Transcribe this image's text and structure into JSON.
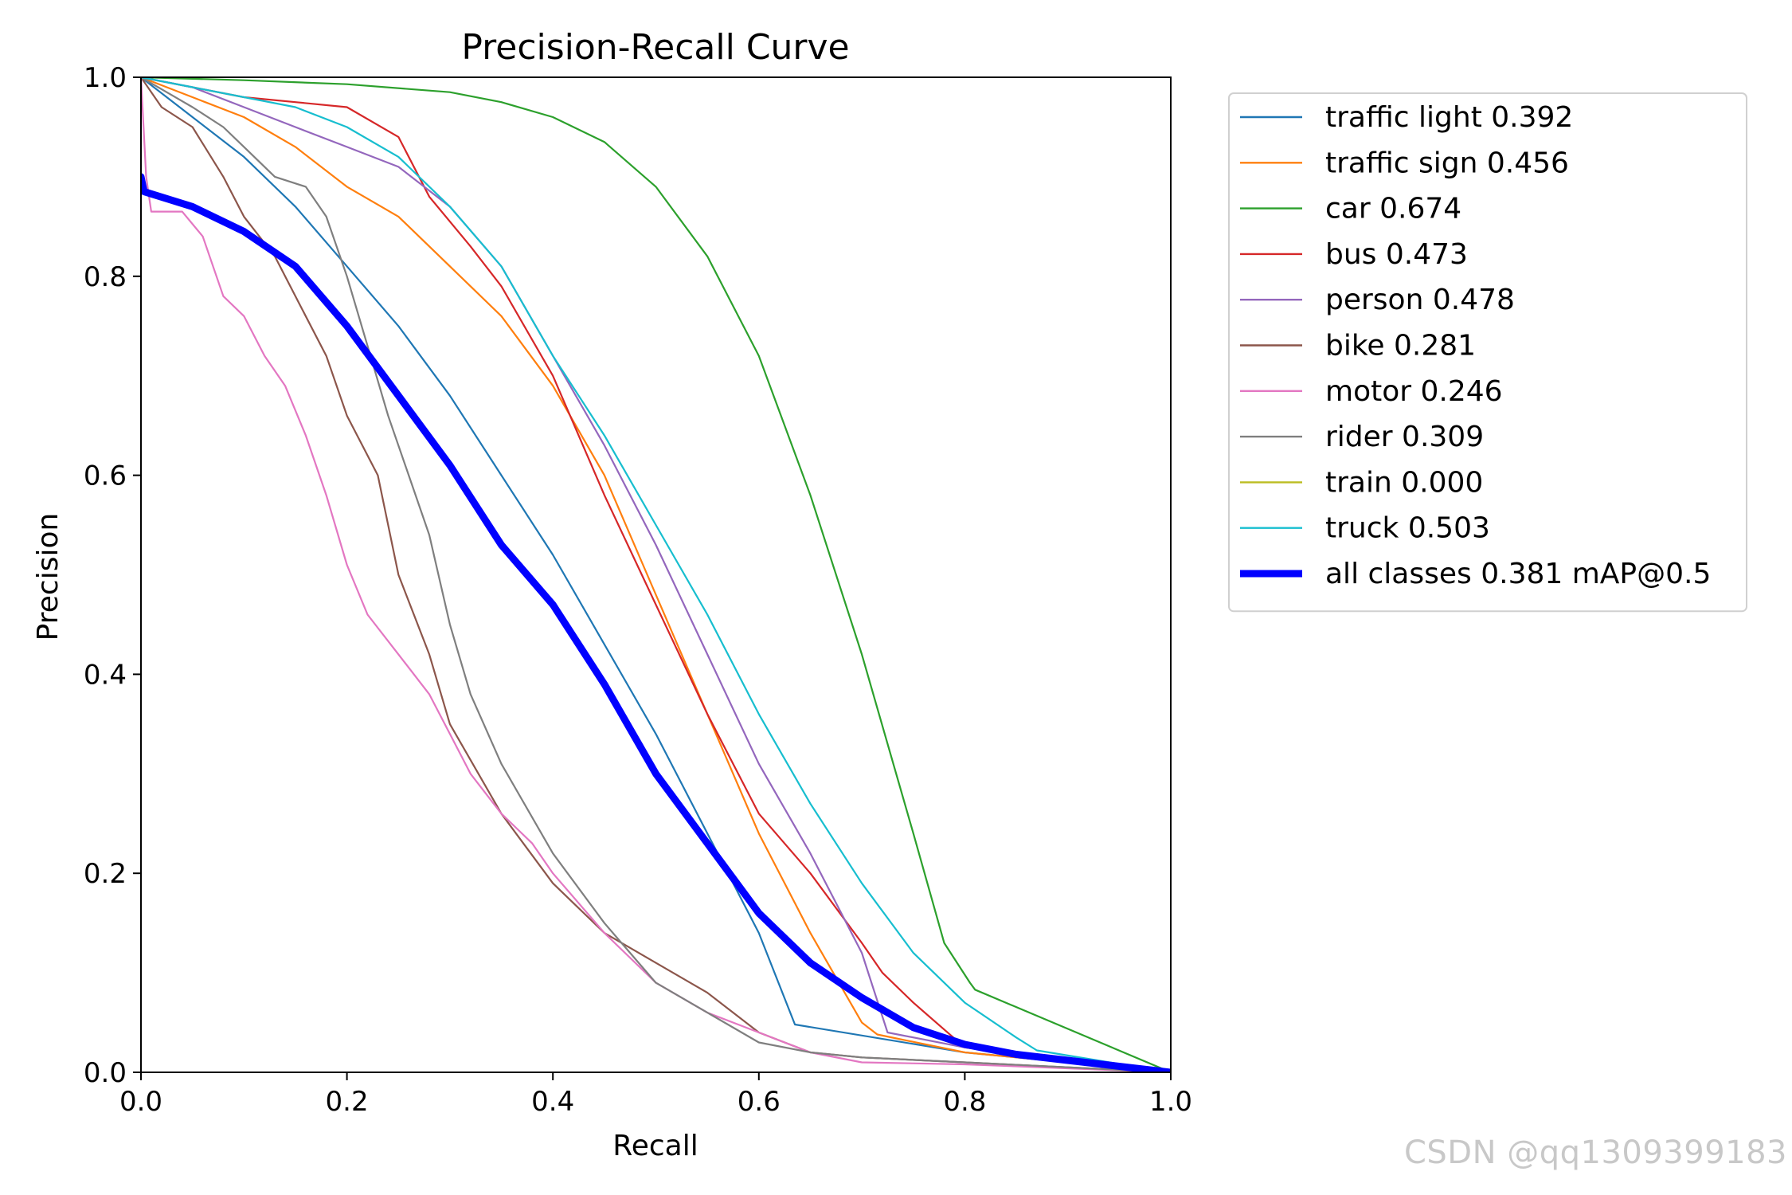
{
  "chart_data": {
    "type": "line",
    "title": "Precision-Recall Curve",
    "xlabel": "Recall",
    "ylabel": "Precision",
    "xlim": [
      0,
      1
    ],
    "ylim": [
      0,
      1
    ],
    "xticks": [
      "0.0",
      "0.2",
      "0.4",
      "0.6",
      "0.8",
      "1.0"
    ],
    "yticks": [
      "0.0",
      "0.2",
      "0.4",
      "0.6",
      "0.8",
      "1.0"
    ],
    "legend_position": "outside-top-right",
    "series": [
      {
        "name": "traffic light 0.392",
        "color": "#1f77b4",
        "x": [
          0,
          0.05,
          0.1,
          0.15,
          0.2,
          0.25,
          0.3,
          0.35,
          0.4,
          0.45,
          0.5,
          0.55,
          0.6,
          0.635,
          0.8,
          1.0
        ],
        "y": [
          1.0,
          0.96,
          0.92,
          0.87,
          0.81,
          0.75,
          0.68,
          0.6,
          0.52,
          0.43,
          0.34,
          0.24,
          0.14,
          0.048,
          0.02,
          0.0
        ]
      },
      {
        "name": "traffic sign 0.456",
        "color": "#ff7f0e",
        "x": [
          0,
          0.05,
          0.1,
          0.15,
          0.2,
          0.25,
          0.3,
          0.35,
          0.4,
          0.45,
          0.5,
          0.55,
          0.6,
          0.65,
          0.7,
          0.715,
          0.8,
          1.0
        ],
        "y": [
          1.0,
          0.98,
          0.96,
          0.93,
          0.89,
          0.86,
          0.81,
          0.76,
          0.69,
          0.6,
          0.48,
          0.36,
          0.24,
          0.14,
          0.05,
          0.038,
          0.02,
          0.0
        ]
      },
      {
        "name": "car 0.674",
        "color": "#2ca02c",
        "x": [
          0,
          0.1,
          0.2,
          0.3,
          0.35,
          0.4,
          0.45,
          0.5,
          0.55,
          0.6,
          0.65,
          0.7,
          0.75,
          0.78,
          0.805,
          0.81,
          1.0
        ],
        "y": [
          1.0,
          0.997,
          0.993,
          0.985,
          0.975,
          0.96,
          0.935,
          0.89,
          0.82,
          0.72,
          0.58,
          0.42,
          0.24,
          0.13,
          0.09,
          0.083,
          0.0
        ]
      },
      {
        "name": "bus 0.473",
        "color": "#d62728",
        "x": [
          0,
          0.05,
          0.1,
          0.15,
          0.2,
          0.25,
          0.28,
          0.32,
          0.35,
          0.4,
          0.45,
          0.5,
          0.55,
          0.6,
          0.65,
          0.7,
          0.72,
          0.75,
          0.8,
          1.0
        ],
        "y": [
          1.0,
          0.99,
          0.98,
          0.975,
          0.97,
          0.94,
          0.88,
          0.83,
          0.79,
          0.7,
          0.58,
          0.47,
          0.36,
          0.26,
          0.2,
          0.13,
          0.1,
          0.07,
          0.025,
          0.0
        ]
      },
      {
        "name": "person 0.478",
        "color": "#9467bd",
        "x": [
          0,
          0.05,
          0.1,
          0.15,
          0.2,
          0.25,
          0.3,
          0.35,
          0.4,
          0.45,
          0.5,
          0.55,
          0.6,
          0.65,
          0.7,
          0.725,
          0.8,
          1.0
        ],
        "y": [
          1.0,
          0.99,
          0.97,
          0.95,
          0.93,
          0.91,
          0.87,
          0.81,
          0.72,
          0.63,
          0.53,
          0.42,
          0.31,
          0.22,
          0.12,
          0.04,
          0.025,
          0.0
        ]
      },
      {
        "name": "bike 0.281",
        "color": "#8c564b",
        "x": [
          0,
          0.02,
          0.05,
          0.08,
          0.1,
          0.13,
          0.15,
          0.18,
          0.2,
          0.23,
          0.25,
          0.28,
          0.3,
          0.35,
          0.4,
          0.45,
          0.5,
          0.55,
          0.6,
          0.65,
          0.7,
          0.8,
          1.0
        ],
        "y": [
          1.0,
          0.97,
          0.95,
          0.9,
          0.86,
          0.82,
          0.78,
          0.72,
          0.66,
          0.6,
          0.5,
          0.42,
          0.35,
          0.26,
          0.19,
          0.14,
          0.11,
          0.08,
          0.04,
          0.02,
          0.015,
          0.01,
          0.0
        ]
      },
      {
        "name": "motor 0.246",
        "color": "#e377c2",
        "x": [
          0,
          0.005,
          0.01,
          0.04,
          0.06,
          0.08,
          0.1,
          0.12,
          0.14,
          0.16,
          0.18,
          0.2,
          0.22,
          0.25,
          0.28,
          0.3,
          0.32,
          0.35,
          0.38,
          0.4,
          0.45,
          0.5,
          0.55,
          0.6,
          0.65,
          0.7,
          0.8,
          1.0
        ],
        "y": [
          1.0,
          0.9,
          0.865,
          0.865,
          0.84,
          0.78,
          0.76,
          0.72,
          0.69,
          0.64,
          0.58,
          0.51,
          0.46,
          0.42,
          0.38,
          0.34,
          0.3,
          0.26,
          0.23,
          0.2,
          0.14,
          0.09,
          0.06,
          0.04,
          0.02,
          0.01,
          0.008,
          0.0
        ]
      },
      {
        "name": "rider 0.309",
        "color": "#7f7f7f",
        "x": [
          0,
          0.05,
          0.08,
          0.1,
          0.13,
          0.16,
          0.18,
          0.2,
          0.22,
          0.24,
          0.26,
          0.28,
          0.3,
          0.32,
          0.35,
          0.4,
          0.45,
          0.5,
          0.55,
          0.6,
          0.65,
          0.7,
          0.8,
          1.0
        ],
        "y": [
          1.0,
          0.97,
          0.95,
          0.93,
          0.9,
          0.89,
          0.86,
          0.8,
          0.73,
          0.66,
          0.6,
          0.54,
          0.45,
          0.38,
          0.31,
          0.22,
          0.15,
          0.09,
          0.06,
          0.03,
          0.02,
          0.015,
          0.01,
          0.0
        ]
      },
      {
        "name": "train 0.000",
        "color": "#bcbd22",
        "x": [],
        "y": []
      },
      {
        "name": "truck 0.503",
        "color": "#17becf",
        "x": [
          0,
          0.05,
          0.1,
          0.15,
          0.2,
          0.25,
          0.3,
          0.35,
          0.4,
          0.45,
          0.5,
          0.55,
          0.6,
          0.65,
          0.7,
          0.75,
          0.8,
          0.85,
          0.87,
          1.0
        ],
        "y": [
          1.0,
          0.99,
          0.98,
          0.97,
          0.95,
          0.92,
          0.87,
          0.81,
          0.72,
          0.64,
          0.55,
          0.46,
          0.36,
          0.27,
          0.19,
          0.12,
          0.07,
          0.035,
          0.022,
          0.0
        ]
      },
      {
        "name": "all classes 0.381 mAP@0.5",
        "color": "#0000ff",
        "width": "thick",
        "x": [
          0,
          0.003,
          0.05,
          0.1,
          0.15,
          0.2,
          0.25,
          0.3,
          0.35,
          0.4,
          0.45,
          0.5,
          0.55,
          0.6,
          0.65,
          0.7,
          0.75,
          0.8,
          0.85,
          0.9,
          1.0
        ],
        "y": [
          0.9,
          0.885,
          0.87,
          0.845,
          0.81,
          0.75,
          0.68,
          0.61,
          0.53,
          0.47,
          0.39,
          0.3,
          0.23,
          0.16,
          0.11,
          0.075,
          0.045,
          0.028,
          0.018,
          0.012,
          0.0
        ]
      }
    ]
  },
  "watermark": "CSDN @qq1309399183"
}
